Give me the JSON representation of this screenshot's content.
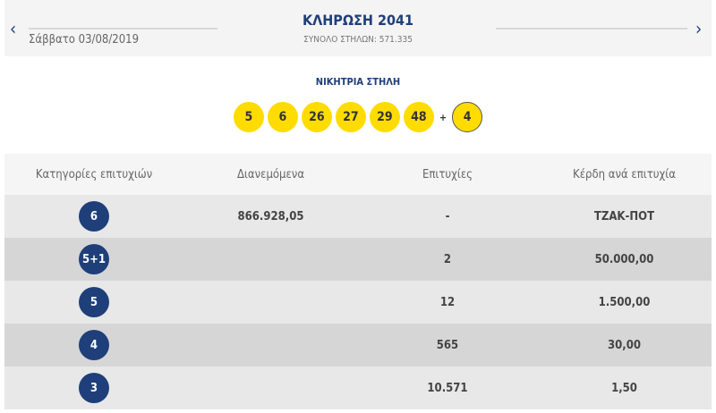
{
  "header": {
    "title": "ΚΛΗΡΩΣΗ 2041",
    "date": "Σάββατο 03/08/2019",
    "total": "ΣΥΝΟΛΟ ΣΤΗΛΩΝ: 571.335",
    "prev_icon": "chevron-left-icon",
    "next_icon": "chevron-right-icon",
    "prev": "‹",
    "next": "›"
  },
  "winning": {
    "label": "ΝΙΚΗΤΡΙΑ ΣΤΗΛΗ",
    "numbers": [
      "5",
      "6",
      "26",
      "27",
      "29",
      "48"
    ],
    "plus": "+",
    "bonus": "4"
  },
  "colors": {
    "accent": "#1f3f7a",
    "ball": "#ffdc00"
  },
  "table": {
    "headers": [
      "Κατηγορίες επιτυχιών",
      "Διανεμόμενα",
      "Επιτυχίες",
      "Κέρδη ανά επιτυχία"
    ],
    "rows": [
      {
        "cat": "6",
        "dist": "866.928,05",
        "wins": "-",
        "prize": "ΤΖΑΚ-ΠΟΤ"
      },
      {
        "cat": "5+1",
        "dist": "",
        "wins": "2",
        "prize": "50.000,00"
      },
      {
        "cat": "5",
        "dist": "",
        "wins": "12",
        "prize": "1.500,00"
      },
      {
        "cat": "4",
        "dist": "",
        "wins": "565",
        "prize": "30,00"
      },
      {
        "cat": "3",
        "dist": "",
        "wins": "10.571",
        "prize": "1,50"
      }
    ]
  }
}
